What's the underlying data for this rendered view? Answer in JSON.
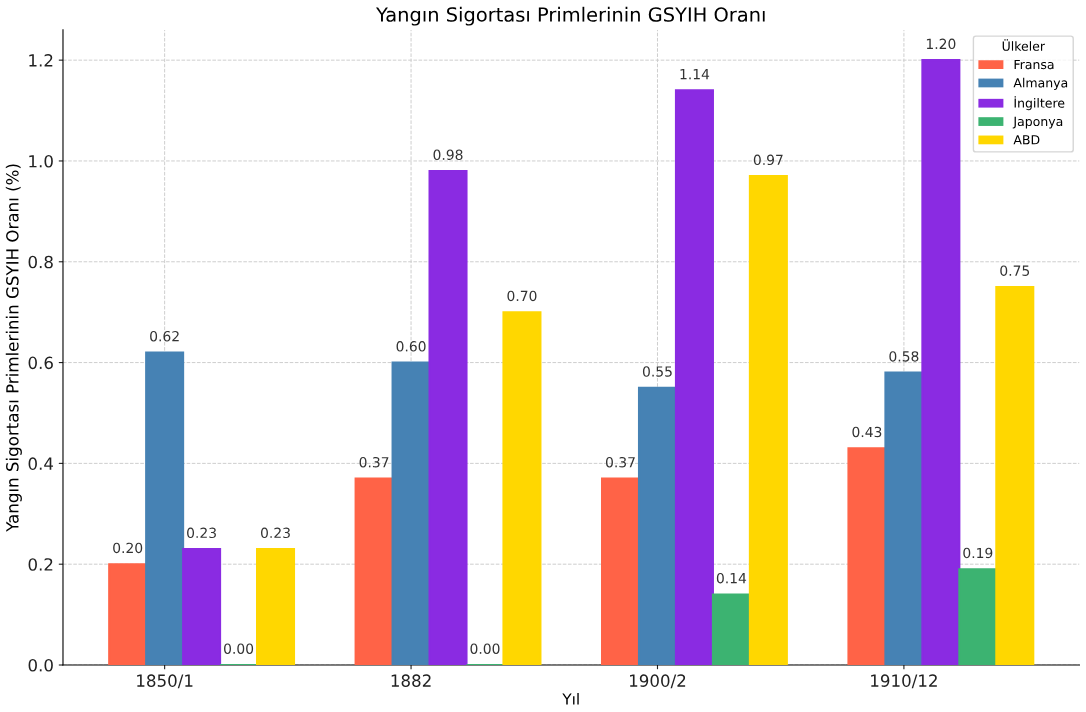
{
  "chart_data": {
    "type": "bar",
    "title": "Yangın Sigortası Primlerinin GSYIH Oranı",
    "xlabel": "Yıl",
    "ylabel": "Yangın Sigortası Primlerinin GSYIH Oranı (%)",
    "legend_title": "Ülkeler",
    "categories": [
      "1850/1",
      "1882",
      "1900/2",
      "1910/12"
    ],
    "series": [
      {
        "name": "Fransa",
        "color": "#ff6347",
        "values": [
          0.2,
          0.37,
          0.37,
          0.43
        ],
        "value_labels": [
          "0.20",
          "0.37",
          "0.37",
          "0.43"
        ]
      },
      {
        "name": "Almanya",
        "color": "#4682b4",
        "values": [
          0.62,
          0.6,
          0.55,
          0.58
        ],
        "value_labels": [
          "0.62",
          "0.60",
          "0.55",
          "0.58"
        ]
      },
      {
        "name": "İngiltere",
        "color": "#8a2be2",
        "values": [
          0.23,
          0.98,
          1.14,
          1.2
        ],
        "value_labels": [
          "0.23",
          "0.98",
          "1.14",
          "1.20"
        ]
      },
      {
        "name": "Japonya",
        "color": "#3cb371",
        "values": [
          0.0,
          0.0,
          0.14,
          0.19
        ],
        "value_labels": [
          "0.00",
          "0.00",
          "0.14",
          "0.19"
        ]
      },
      {
        "name": "ABD",
        "color": "#ffd700",
        "values": [
          0.23,
          0.7,
          0.97,
          0.75
        ],
        "value_labels": [
          "0.23",
          "0.70",
          "0.97",
          "0.75"
        ]
      }
    ],
    "ylim": [
      0,
      1.26
    ],
    "yticks": [
      {
        "value": 0,
        "label": "0.0"
      },
      0.2,
      0.4,
      0.6,
      0.8,
      {
        "value": 1,
        "label": "1.0"
      },
      1.2
    ],
    "grid": true,
    "legend": "top right"
  }
}
